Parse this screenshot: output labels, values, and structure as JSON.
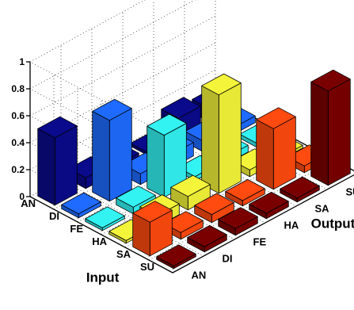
{
  "chart_data": {
    "type": "bar3d",
    "title": "",
    "xlabel": "Output",
    "ylabel": "Input",
    "zlabel": "",
    "output_categories": [
      "AN",
      "DI",
      "FE",
      "HA",
      "SA",
      "SU"
    ],
    "input_categories": [
      "AN",
      "DI",
      "FE",
      "HA",
      "SA",
      "SU"
    ],
    "zlim": [
      0,
      1
    ],
    "zticks": [
      "0",
      "0.2",
      "0.4",
      "0.6",
      "0.8",
      "1"
    ],
    "grid": true,
    "colors": [
      "#0a0a8c",
      "#1f6bff",
      "#33f2f2",
      "#f4f43a",
      "#ff4a10",
      "#7a0000"
    ],
    "matrix_note": "rows = input category, columns = output category",
    "values": [
      [
        0.5,
        0.08,
        0.05,
        0.02,
        0.15,
        0.1
      ],
      [
        0.03,
        0.6,
        0.08,
        0.1,
        0.08,
        0.05
      ],
      [
        0.02,
        0.05,
        0.46,
        0.03,
        0.05,
        0.03
      ],
      [
        0.02,
        0.08,
        0.1,
        0.73,
        0.05,
        0.02
      ],
      [
        0.25,
        0.05,
        0.06,
        0.04,
        0.45,
        0.05
      ],
      [
        0.02,
        0.04,
        0.05,
        0.04,
        0.03,
        0.7
      ]
    ]
  }
}
